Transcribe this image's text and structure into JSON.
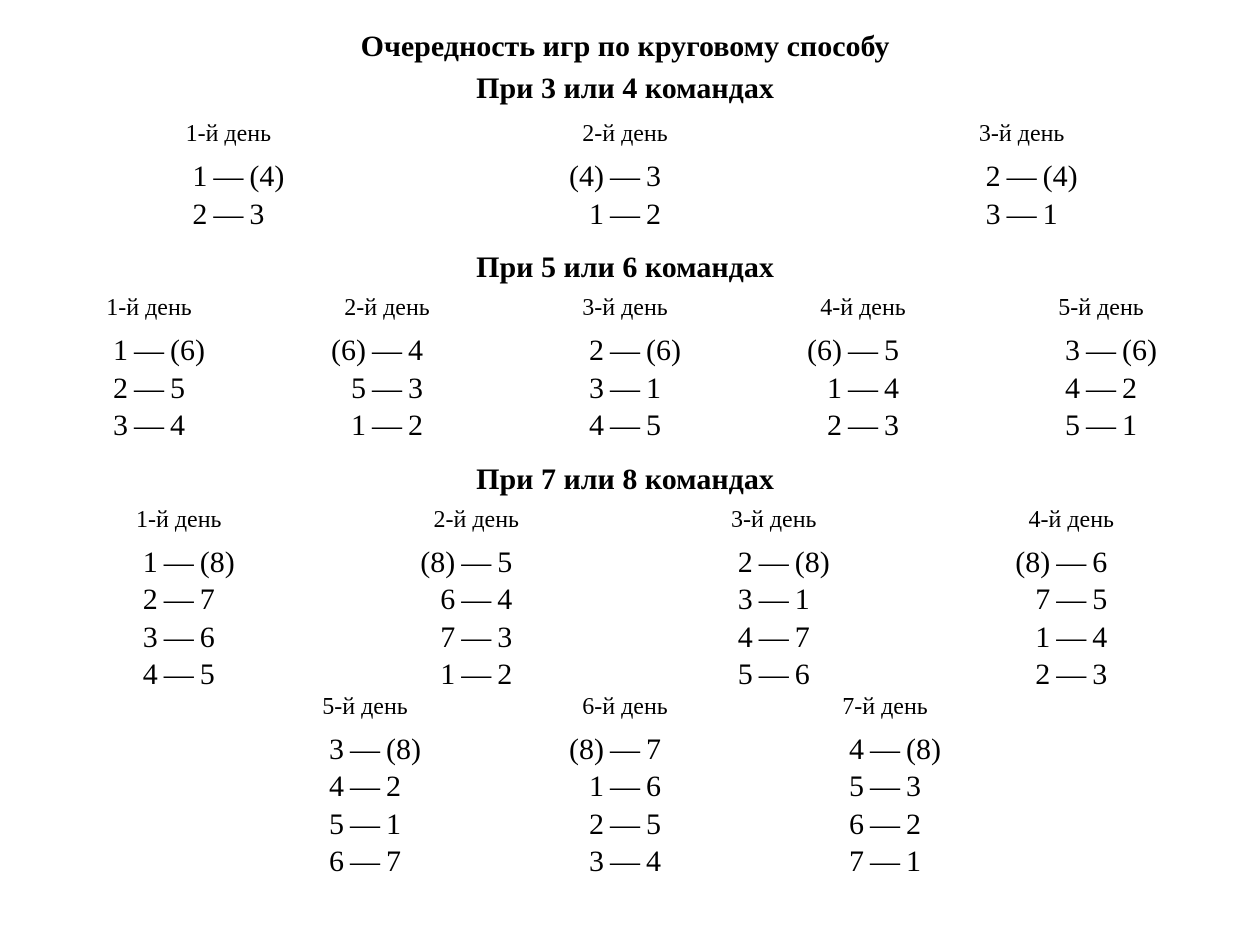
{
  "title_line1": "Очередность игр по круговому способу",
  "title_line2": "При 3 или 4 командах",
  "sections": [
    {
      "heading": null,
      "rows": [
        {
          "layout": "spread",
          "days": [
            {
              "label": "1-й день",
              "pairs": [
                [
                  "1",
                  "(4)"
                ],
                [
                  "2",
                  "3"
                ]
              ]
            },
            {
              "label": "2-й день",
              "pairs": [
                [
                  "(4)",
                  "3"
                ],
                [
                  "1",
                  "2"
                ]
              ]
            },
            {
              "label": "3-й день",
              "pairs": [
                [
                  "2",
                  "(4)"
                ],
                [
                  "3",
                  "1"
                ]
              ]
            }
          ]
        }
      ]
    },
    {
      "heading": "При 5 или 6 командах",
      "rows": [
        {
          "layout": "spread",
          "days": [
            {
              "label": "1-й день",
              "pairs": [
                [
                  "1",
                  "(6)"
                ],
                [
                  "2",
                  "5"
                ],
                [
                  "3",
                  "4"
                ]
              ]
            },
            {
              "label": "2-й день",
              "pairs": [
                [
                  "(6)",
                  "4"
                ],
                [
                  "5",
                  "3"
                ],
                [
                  "1",
                  "2"
                ]
              ]
            },
            {
              "label": "3-й день",
              "pairs": [
                [
                  "2",
                  "(6)"
                ],
                [
                  "3",
                  "1"
                ],
                [
                  "4",
                  "5"
                ]
              ]
            },
            {
              "label": "4-й день",
              "pairs": [
                [
                  "(6)",
                  "5"
                ],
                [
                  "1",
                  "4"
                ],
                [
                  "2",
                  "3"
                ]
              ]
            },
            {
              "label": "5-й день",
              "pairs": [
                [
                  "3",
                  "(6)"
                ],
                [
                  "4",
                  "2"
                ],
                [
                  "5",
                  "1"
                ]
              ]
            }
          ]
        }
      ]
    },
    {
      "heading": "При 7 или 8 командах",
      "rows": [
        {
          "layout": "spread",
          "days": [
            {
              "label": "1-й день",
              "pairs": [
                [
                  "1",
                  "(8)"
                ],
                [
                  "2",
                  "7"
                ],
                [
                  "3",
                  "6"
                ],
                [
                  "4",
                  "5"
                ]
              ]
            },
            {
              "label": "2-й день",
              "pairs": [
                [
                  "(8)",
                  "5"
                ],
                [
                  "6",
                  "4"
                ],
                [
                  "7",
                  "3"
                ],
                [
                  "1",
                  "2"
                ]
              ]
            },
            {
              "label": "3-й день",
              "pairs": [
                [
                  "2",
                  "(8)"
                ],
                [
                  "3",
                  "1"
                ],
                [
                  "4",
                  "7"
                ],
                [
                  "5",
                  "6"
                ]
              ]
            },
            {
              "label": "4-й день",
              "pairs": [
                [
                  "(8)",
                  "6"
                ],
                [
                  "7",
                  "5"
                ],
                [
                  "1",
                  "4"
                ],
                [
                  "2",
                  "3"
                ]
              ]
            }
          ]
        },
        {
          "layout": "compact",
          "days": [
            {
              "label": "5-й день",
              "pairs": [
                [
                  "3",
                  "(8)"
                ],
                [
                  "4",
                  "2"
                ],
                [
                  "5",
                  "1"
                ],
                [
                  "6",
                  "7"
                ]
              ]
            },
            {
              "label": "6-й день",
              "pairs": [
                [
                  "(8)",
                  "7"
                ],
                [
                  "1",
                  "6"
                ],
                [
                  "2",
                  "5"
                ],
                [
                  "3",
                  "4"
                ]
              ]
            },
            {
              "label": "7-й день",
              "pairs": [
                [
                  "4",
                  "(8)"
                ],
                [
                  "5",
                  "3"
                ],
                [
                  "6",
                  "2"
                ],
                [
                  "7",
                  "1"
                ]
              ]
            }
          ]
        }
      ]
    }
  ],
  "style": {
    "background_color": "#ffffff",
    "text_color": "#000000",
    "title_fontsize_pt": 22,
    "section_title_fontsize_pt": 22,
    "day_label_fontsize_pt": 18,
    "pair_fontsize_pt": 22,
    "font_family": "Times New Roman"
  }
}
